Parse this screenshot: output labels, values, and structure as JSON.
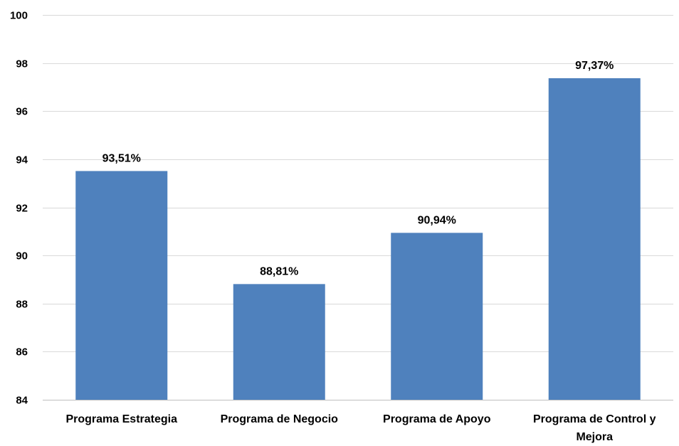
{
  "chart_data": {
    "type": "bar",
    "categories": [
      [
        "Programa Estrategia"
      ],
      [
        "Programa de Negocio"
      ],
      [
        "Programa de Apoyo"
      ],
      [
        "Programa de Control y",
        "Mejora"
      ]
    ],
    "values": [
      93.51,
      88.81,
      90.94,
      97.37
    ],
    "data_labels": [
      "93,51%",
      "88,81%",
      "90,94%",
      "97,37%"
    ],
    "title": "",
    "xlabel": "",
    "ylabel": "",
    "ylim": [
      84,
      100
    ],
    "yticks": [
      84,
      86,
      88,
      90,
      92,
      94,
      96,
      98,
      100
    ],
    "grid": true,
    "legend": "none",
    "colors": {
      "bar": "#4F81BD",
      "grid": "#D9D9D9",
      "axis": "#BFBFBF"
    }
  }
}
